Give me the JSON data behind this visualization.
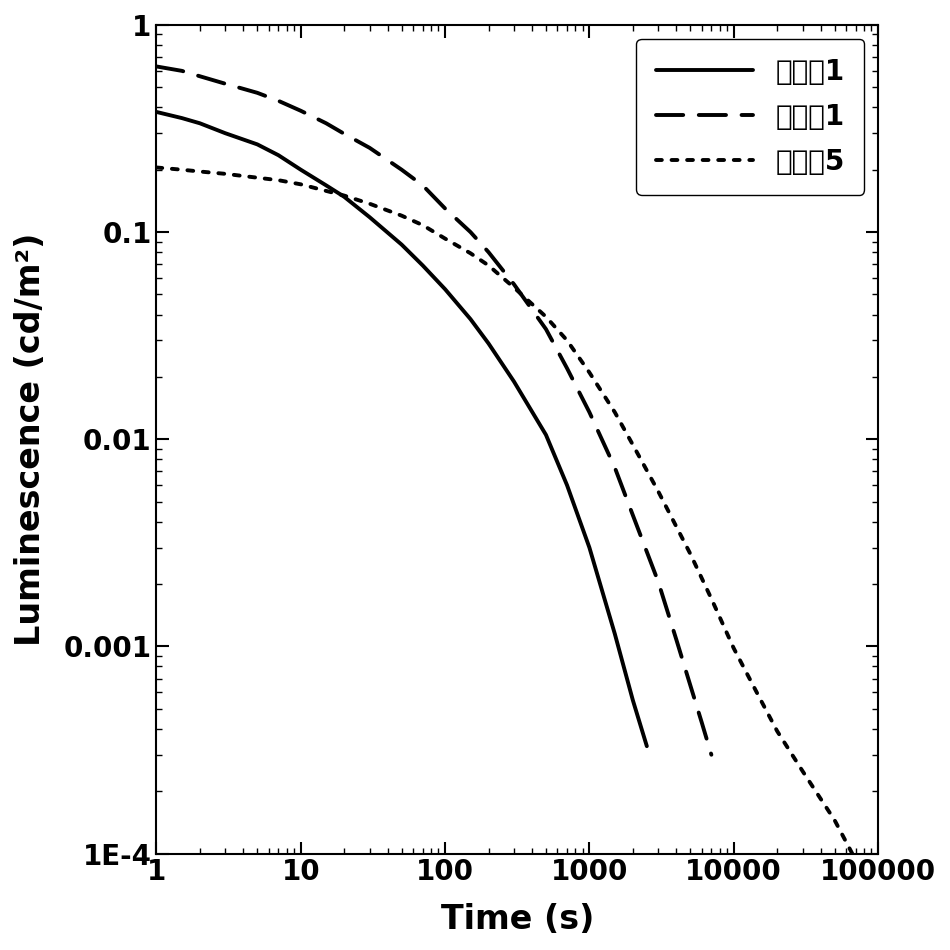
{
  "title": "",
  "xlabel": "Time (s)",
  "ylabel": "Luminescence (cd/m²)",
  "xlim": [
    1,
    100000
  ],
  "ylim": [
    0.0001,
    1
  ],
  "line_color": "#000000",
  "legend_labels": [
    "比较例1",
    "实施例1",
    "实施例5"
  ],
  "legend_linestyles": [
    "solid",
    "dashed",
    "dotted"
  ],
  "curve1": {
    "x": [
      1,
      1.5,
      2,
      3,
      5,
      7,
      10,
      15,
      20,
      30,
      50,
      70,
      100,
      150,
      200,
      300,
      500,
      700,
      1000,
      1500,
      2000,
      2500
    ],
    "y": [
      0.38,
      0.355,
      0.335,
      0.3,
      0.265,
      0.235,
      0.2,
      0.168,
      0.148,
      0.118,
      0.087,
      0.069,
      0.053,
      0.038,
      0.029,
      0.019,
      0.0105,
      0.006,
      0.003,
      0.00115,
      0.00055,
      0.00033
    ]
  },
  "curve2": {
    "x": [
      1,
      1.5,
      2,
      3,
      5,
      7,
      10,
      15,
      20,
      30,
      50,
      70,
      100,
      150,
      200,
      300,
      500,
      700,
      1000,
      1500,
      2000,
      3000,
      4000,
      5000,
      6000,
      7000
    ],
    "y": [
      0.63,
      0.6,
      0.565,
      0.52,
      0.47,
      0.43,
      0.385,
      0.335,
      0.298,
      0.255,
      0.2,
      0.168,
      0.13,
      0.1,
      0.08,
      0.056,
      0.034,
      0.022,
      0.0135,
      0.0073,
      0.0043,
      0.00205,
      0.00108,
      0.00065,
      0.00043,
      0.0003
    ]
  },
  "curve3": {
    "x": [
      1,
      1.5,
      2,
      3,
      5,
      7,
      10,
      15,
      20,
      30,
      50,
      70,
      100,
      150,
      200,
      300,
      500,
      700,
      1000,
      1500,
      2000,
      3000,
      5000,
      7000,
      10000,
      15000,
      20000,
      30000,
      50000,
      70000,
      100000
    ],
    "y": [
      0.205,
      0.2,
      0.196,
      0.191,
      0.183,
      0.178,
      0.17,
      0.158,
      0.15,
      0.137,
      0.12,
      0.108,
      0.093,
      0.079,
      0.069,
      0.054,
      0.039,
      0.03,
      0.021,
      0.0135,
      0.0094,
      0.0056,
      0.0028,
      0.0017,
      0.00098,
      0.00057,
      0.00039,
      0.00025,
      0.000145,
      9.3e-05,
      6.2e-05
    ]
  },
  "linewidth": 2.8,
  "fontsize_label": 24,
  "fontsize_tick": 20,
  "fontsize_legend": 20,
  "background_color": "#ffffff"
}
